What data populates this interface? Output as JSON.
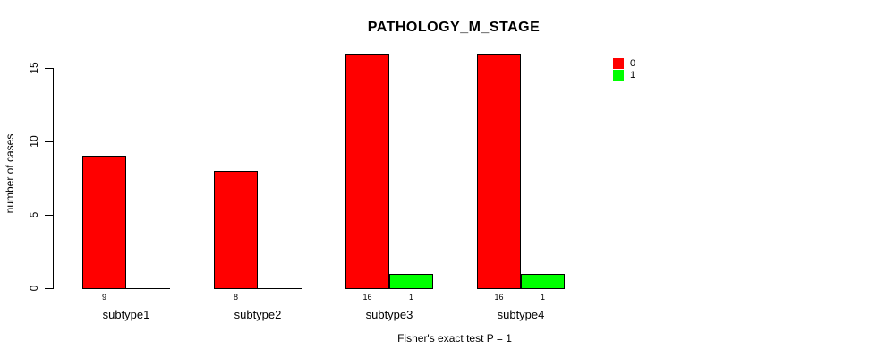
{
  "chart_data": {
    "type": "bar",
    "title": "PATHOLOGY_M_STAGE",
    "ylabel": "number of cases",
    "xlabel": "",
    "footnote": "Fisher's exact test P = 1",
    "categories": [
      "subtype1",
      "subtype2",
      "subtype3",
      "subtype4"
    ],
    "series": [
      {
        "name": "0",
        "color": "#FF0000",
        "values": [
          9,
          8,
          16,
          16
        ]
      },
      {
        "name": "1",
        "color": "#00FF00",
        "values": [
          0,
          0,
          1,
          1
        ]
      }
    ],
    "bar_value_labels": {
      "shown_for_nonzero_only": true,
      "labels": [
        [
          "9",
          ""
        ],
        [
          "8",
          ""
        ],
        [
          "16",
          "1"
        ],
        [
          "16",
          "1"
        ]
      ]
    },
    "yticks": [
      0,
      5,
      10,
      15
    ],
    "ylim": [
      0,
      16
    ],
    "grid": false,
    "legend_position": "top-right",
    "axis_color": "#000000",
    "bar_border_color": "#000000",
    "background_color": "#FFFFFF"
  }
}
